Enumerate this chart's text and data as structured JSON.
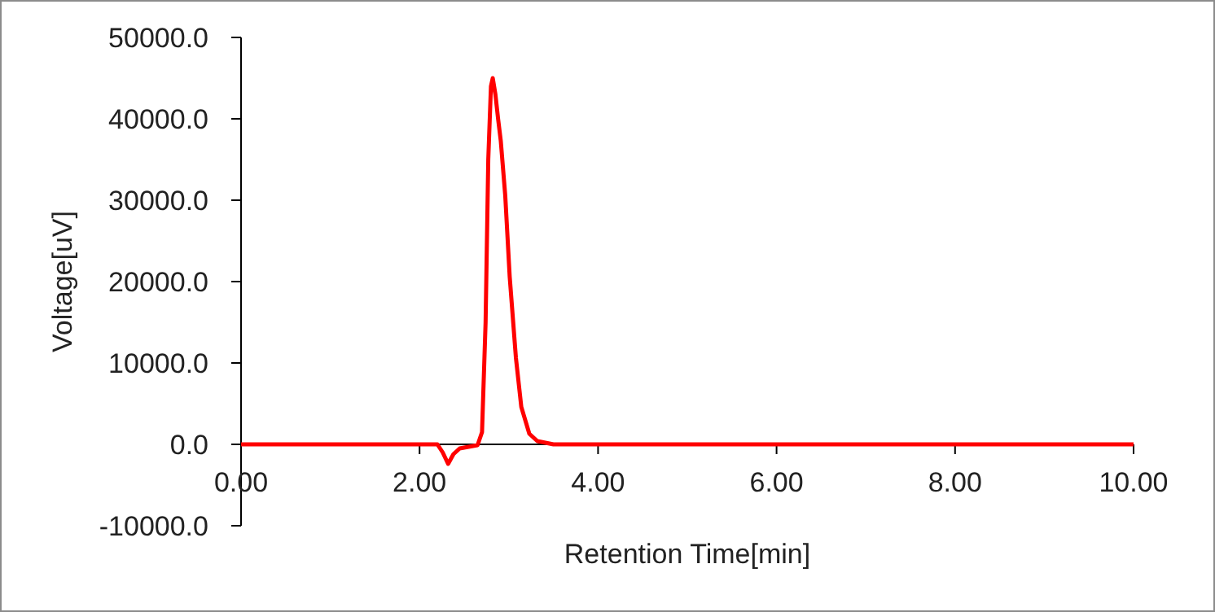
{
  "chart_data": {
    "type": "line",
    "xlabel": "Retention Time[min]",
    "ylabel": "Voltage[uV]",
    "xlim": [
      0,
      10
    ],
    "xticks": [
      {
        "value": 0,
        "label": "0.00"
      },
      {
        "value": 2,
        "label": "2.00"
      },
      {
        "value": 4,
        "label": "4.00"
      },
      {
        "value": 6,
        "label": "6.00"
      },
      {
        "value": 8,
        "label": "8.00"
      },
      {
        "value": 10,
        "label": "10.00"
      }
    ],
    "ylim": [
      -10000,
      50000
    ],
    "yticks": [
      {
        "value": -10000,
        "label": "-10000.0"
      },
      {
        "value": 0,
        "label": "0.0"
      },
      {
        "value": 10000,
        "label": "10000.0"
      },
      {
        "value": 20000,
        "label": "20000.0"
      },
      {
        "value": 30000,
        "label": "30000.0"
      },
      {
        "value": 40000,
        "label": "40000.0"
      },
      {
        "value": 50000,
        "label": "50000.0"
      }
    ],
    "grid": false,
    "marker": "none",
    "line_style": "solid",
    "series": [
      {
        "color": "#ff0000",
        "x": [
          0,
          1,
          2,
          2.2,
          2.26,
          2.32,
          2.38,
          2.45,
          2.55,
          2.65,
          2.7,
          2.74,
          2.77,
          2.8,
          2.82,
          2.85,
          2.88,
          2.91,
          2.96,
          3.01,
          3.08,
          3.14,
          3.23,
          3.32,
          3.5,
          4,
          6,
          8,
          10
        ],
        "values": [
          0,
          0,
          0,
          0,
          -1000,
          -2400,
          -1200,
          -500,
          -300,
          -100,
          1500,
          15000,
          35000,
          44000,
          45000,
          43000,
          40000,
          37300,
          30600,
          20600,
          10600,
          4600,
          1300,
          400,
          0,
          0,
          0,
          0,
          0
        ]
      }
    ]
  }
}
